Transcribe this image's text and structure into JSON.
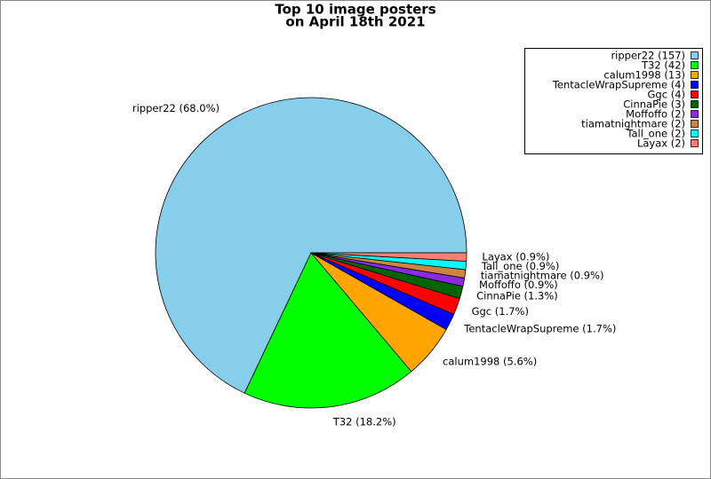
{
  "chart_data": {
    "type": "pie",
    "title_lines": [
      "Top 10 image posters",
      "on April 18th 2021"
    ],
    "values": [
      157,
      42,
      13,
      4,
      4,
      3,
      2,
      2,
      2,
      2
    ],
    "slice_labels": [
      "ripper22 (68.0%)",
      "T32 (18.2%)",
      "calum1998 (5.6%)",
      "TentacleWrapSupreme (1.7%)",
      "Ggc (1.7%)",
      "CinnaPie (1.3%)",
      "Moffoffo (0.9%)",
      "tiamatnightmare (0.9%)",
      "Tall_one (0.9%)",
      "Layax (0.9%)"
    ],
    "legend_labels": [
      "ripper22 (157)",
      "T32 (42)",
      "calum1998 (13)",
      "TentacleWrapSupreme (4)",
      "Ggc (4)",
      "CinnaPie (3)",
      "Moffoffo (2)",
      "tiamatnightmare (2)",
      "Tall_one (2)",
      "Layax (2)"
    ],
    "colors": [
      "#87ceeb",
      "#00ff00",
      "#ffa500",
      "#0000ff",
      "#ff0000",
      "#006400",
      "#8a2be2",
      "#cd853f",
      "#00ffff",
      "#fa8072"
    ],
    "legend": "upper right"
  }
}
